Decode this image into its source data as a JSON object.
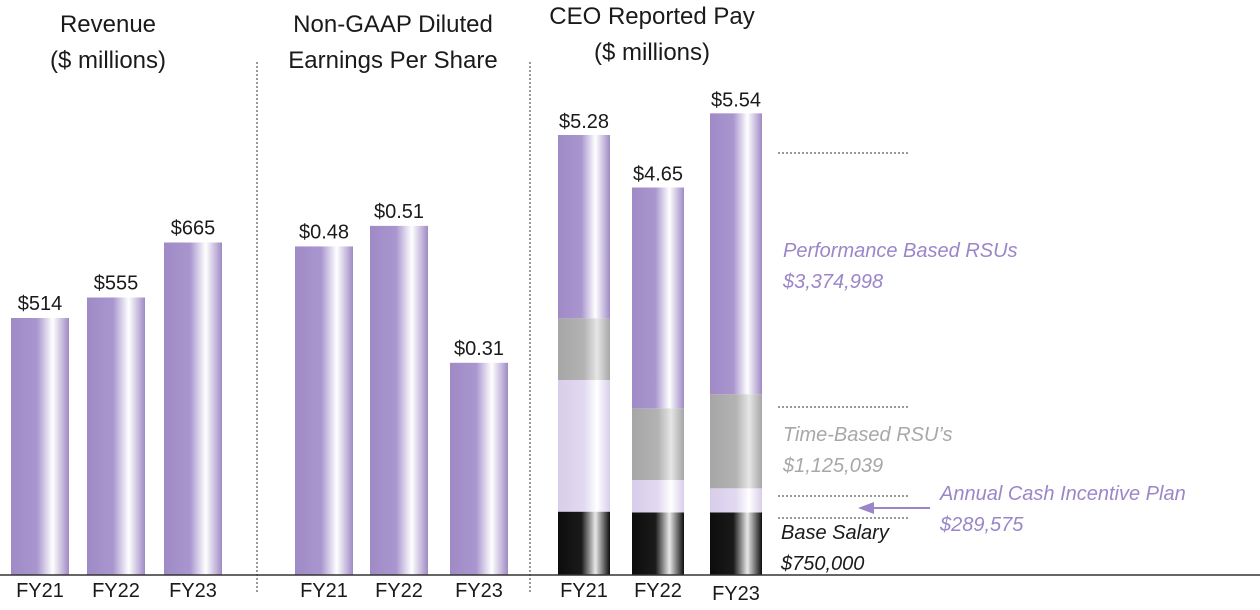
{
  "colors": {
    "purple": "#a48fc8",
    "light_purple": "#ddd3ee",
    "gray": "#b0b0b0",
    "black": "#111111",
    "annotation_purple": "#9b86c9",
    "annotation_gray": "#a8a8a8",
    "annotation_black": "#1a1a1a"
  },
  "chart_data": [
    {
      "type": "bar",
      "title_lines": [
        "Revenue",
        "($ millions)"
      ],
      "categories": [
        "FY21",
        "FY22",
        "FY23"
      ],
      "values": [
        514,
        555,
        665
      ],
      "value_labels": [
        "$514",
        "$555",
        "$665"
      ],
      "ylim": [
        0,
        1150
      ]
    },
    {
      "type": "bar",
      "title_lines": [
        "Non-GAAP Diluted",
        "Earnings Per Share"
      ],
      "categories": [
        "FY21",
        "FY22",
        "FY23"
      ],
      "values": [
        0.48,
        0.51,
        0.31
      ],
      "value_labels": [
        "$0.48",
        "$0.51",
        "$0.31"
      ],
      "ylim": [
        0,
        0.84
      ]
    },
    {
      "type": "bar",
      "stacked": true,
      "title_lines": [
        "CEO Reported Pay",
        "($ millions)"
      ],
      "categories": [
        "FY21",
        "FY22",
        "FY23"
      ],
      "totals": [
        5.28,
        4.65,
        5.54
      ],
      "total_labels": [
        "$5.28",
        "$4.65",
        "$5.54"
      ],
      "ylim": [
        0,
        6.9
      ],
      "series": [
        {
          "name": "Base Salary",
          "color_key": "black",
          "values": [
            0.76,
            0.75,
            0.75
          ]
        },
        {
          "name": "Annual Cash Incentive Plan",
          "color_key": "light_purple",
          "values": [
            1.58,
            0.39,
            0.29
          ]
        },
        {
          "name": "Time-Based RSU's",
          "color_key": "gray",
          "values": [
            0.74,
            0.86,
            1.13
          ]
        },
        {
          "name": "Performance Based RSUs",
          "color_key": "purple",
          "values": [
            2.2,
            2.65,
            3.37
          ]
        }
      ],
      "annotations": [
        {
          "name": "performance-rsus",
          "line1": "Performance Based RSUs",
          "line2": "$3,374,998",
          "color_key": "annotation_purple"
        },
        {
          "name": "time-based-rsus",
          "line1": "Time-Based RSU’s",
          "line2": "$1,125,039",
          "color_key": "annotation_gray"
        },
        {
          "name": "annual-cash-incentive",
          "line1": "Annual Cash Incentive Plan",
          "line2": "$289,575",
          "color_key": "annotation_purple"
        },
        {
          "name": "base-salary",
          "line1": "Base Salary",
          "line2": "$750,000",
          "color_key": "annotation_black"
        }
      ]
    }
  ]
}
